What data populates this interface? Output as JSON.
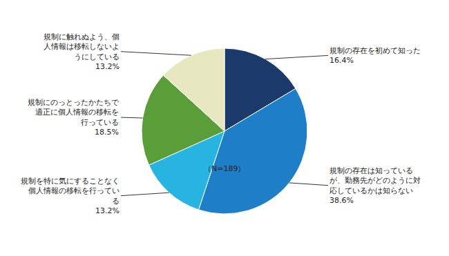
{
  "chart_data": {
    "type": "pie",
    "categories": [
      "規制の存在を初めて知った",
      "規制の存在は知っている\nが、勤務先がどのように対\n応しているかは知らない",
      "規制を特に気にすることなく\n個人情報の移転を行ってい\nる",
      "規制にのっとったかたちで\n適正に個人情報の移転を\n行っている",
      "規制に触れぬよう、個\n人情報は移転しないよ\nうにしている"
    ],
    "values": [
      16.4,
      38.6,
      13.2,
      18.5,
      13.2
    ],
    "value_labels": [
      "16.4%",
      "38.6%",
      "13.2%",
      "18.5%",
      "13.2%"
    ],
    "data_labels": true,
    "colors": [
      "#1b3a6b",
      "#1e7ec8",
      "#28b4e0",
      "#5a9e3a",
      "#e8e8c0"
    ],
    "annotations": [
      "（N=189）"
    ]
  }
}
